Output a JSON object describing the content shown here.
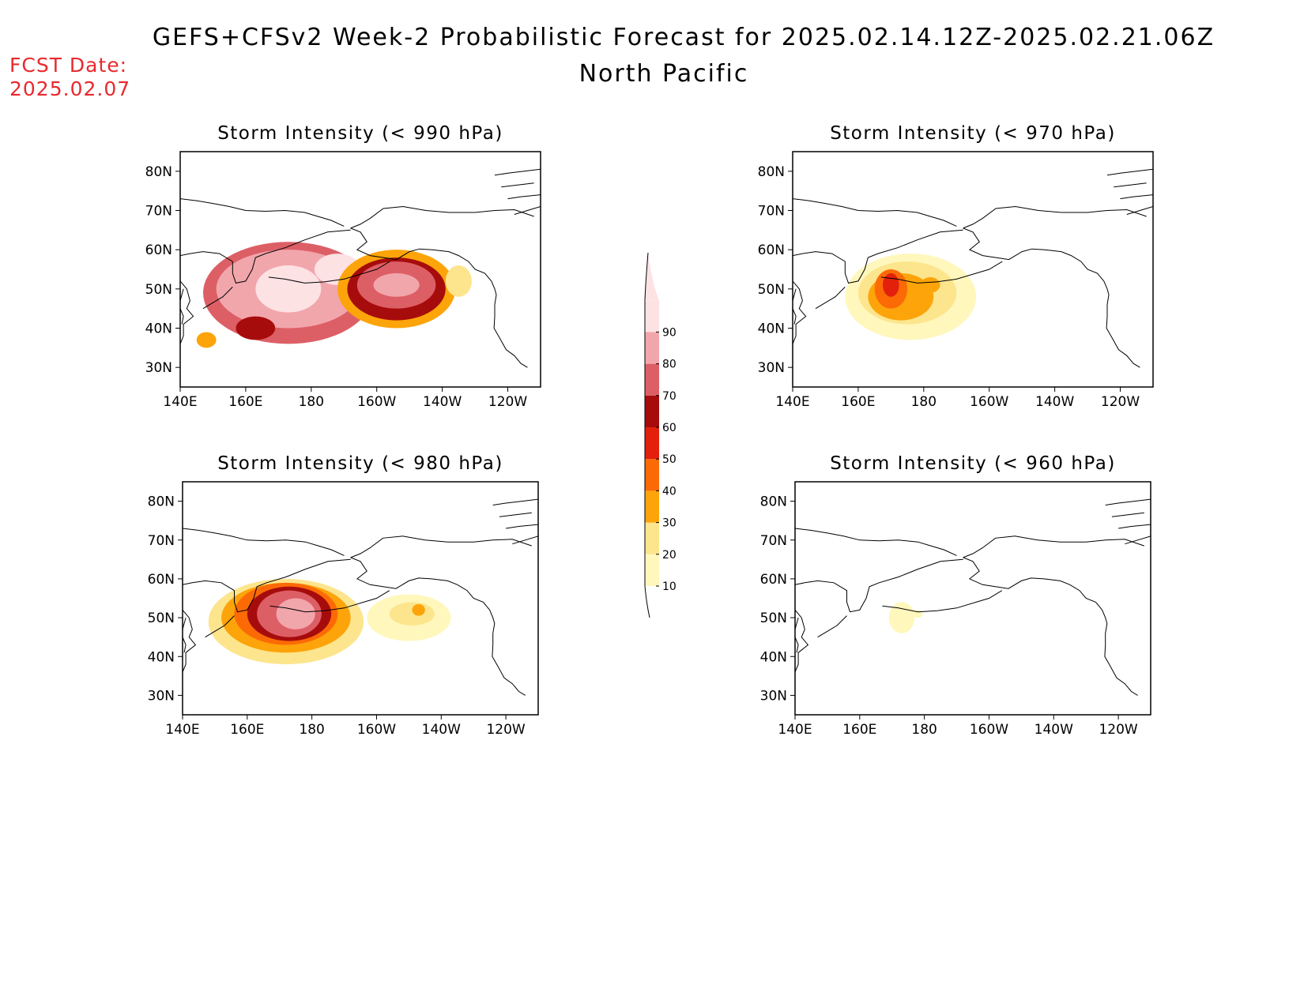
{
  "header": {
    "title": "GEFS+CFSv2 Week-2 Probabilistic Forecast for 2025.02.14.12Z-2025.02.21.06Z",
    "region": "North Pacific",
    "fcst_label": "FCST Date:",
    "fcst_date": "2025.02.07"
  },
  "axes": {
    "lon_ticks": [
      {
        "value": 140,
        "label": "140E"
      },
      {
        "value": 160,
        "label": "160E"
      },
      {
        "value": 180,
        "label": "180"
      },
      {
        "value": 200,
        "label": "160W"
      },
      {
        "value": 220,
        "label": "140W"
      },
      {
        "value": 240,
        "label": "120W"
      }
    ],
    "lat_ticks": [
      {
        "value": 30,
        "label": "30N"
      },
      {
        "value": 40,
        "label": "40N"
      },
      {
        "value": 50,
        "label": "50N"
      },
      {
        "value": 60,
        "label": "60N"
      },
      {
        "value": 70,
        "label": "70N"
      },
      {
        "value": 80,
        "label": "80N"
      }
    ],
    "lon_range": [
      140,
      250
    ],
    "lat_range": [
      25,
      85
    ]
  },
  "colorbar": {
    "levels": [
      10,
      20,
      30,
      40,
      50,
      60,
      70,
      80,
      90
    ],
    "colors": [
      "#fff7bc",
      "#fde58e",
      "#fca40a",
      "#fc6a06",
      "#e3200c",
      "#a70c0c",
      "#dd5f66",
      "#f1a6ac",
      "#fde2e4"
    ],
    "tick_labels": [
      "10",
      "20",
      "30",
      "40",
      "50",
      "60",
      "70",
      "80",
      "90"
    ]
  },
  "panels": [
    {
      "id": "p990",
      "title": "Storm Intensity (< 990 hPa)",
      "blobs": [
        {
          "lon": 173,
          "lat": 49,
          "rlon": 26,
          "rlat": 13,
          "value": 70
        },
        {
          "lon": 173,
          "lat": 50,
          "rlon": 22,
          "rlat": 10,
          "value": 80
        },
        {
          "lon": 173,
          "lat": 50,
          "rlon": 10,
          "rlat": 6,
          "value": 90
        },
        {
          "lon": 188,
          "lat": 55,
          "rlon": 7,
          "rlat": 4,
          "value": 90
        },
        {
          "lon": 163,
          "lat": 40,
          "rlon": 6,
          "rlat": 3,
          "value": 60
        },
        {
          "lon": 206,
          "lat": 50,
          "rlon": 18,
          "rlat": 10,
          "value": 30
        },
        {
          "lon": 206,
          "lat": 50,
          "rlon": 15,
          "rlat": 8,
          "value": 60
        },
        {
          "lon": 206,
          "lat": 51,
          "rlon": 12,
          "rlat": 6,
          "value": 70
        },
        {
          "lon": 206,
          "lat": 51,
          "rlon": 7,
          "rlat": 3,
          "value": 80
        },
        {
          "lon": 148,
          "lat": 37,
          "rlon": 3,
          "rlat": 2,
          "value": 30
        },
        {
          "lon": 225,
          "lat": 52,
          "rlon": 4,
          "rlat": 4,
          "value": 20
        }
      ]
    },
    {
      "id": "p970",
      "title": "Storm Intensity (< 970 hPa)",
      "blobs": [
        {
          "lon": 176,
          "lat": 48,
          "rlon": 20,
          "rlat": 11,
          "value": 10
        },
        {
          "lon": 175,
          "lat": 49,
          "rlon": 15,
          "rlat": 8,
          "value": 20
        },
        {
          "lon": 173,
          "lat": 48,
          "rlon": 10,
          "rlat": 6,
          "value": 30
        },
        {
          "lon": 170,
          "lat": 50,
          "rlon": 5,
          "rlat": 5,
          "value": 40
        },
        {
          "lon": 170,
          "lat": 51,
          "rlon": 2.5,
          "rlat": 3,
          "value": 50
        },
        {
          "lon": 182,
          "lat": 51,
          "rlon": 3,
          "rlat": 2,
          "value": 30
        }
      ]
    },
    {
      "id": "p980",
      "title": "Storm Intensity (< 980 hPa)",
      "blobs": [
        {
          "lon": 172,
          "lat": 49,
          "rlon": 24,
          "rlat": 11,
          "value": 20
        },
        {
          "lon": 172,
          "lat": 50,
          "rlon": 20,
          "rlat": 9,
          "value": 30
        },
        {
          "lon": 172,
          "lat": 51,
          "rlon": 16,
          "rlat": 8,
          "value": 40
        },
        {
          "lon": 173,
          "lat": 51,
          "rlon": 13,
          "rlat": 7,
          "value": 60
        },
        {
          "lon": 173,
          "lat": 51,
          "rlon": 10,
          "rlat": 6,
          "value": 70
        },
        {
          "lon": 175,
          "lat": 51,
          "rlon": 6,
          "rlat": 4,
          "value": 80
        },
        {
          "lon": 210,
          "lat": 50,
          "rlon": 13,
          "rlat": 6,
          "value": 10
        },
        {
          "lon": 211,
          "lat": 51,
          "rlon": 7,
          "rlat": 3,
          "value": 20
        },
        {
          "lon": 213,
          "lat": 52,
          "rlon": 2,
          "rlat": 1.5,
          "value": 30
        }
      ]
    },
    {
      "id": "p960",
      "title": "Storm Intensity (< 960 hPa)",
      "blobs": [
        {
          "lon": 173,
          "lat": 50,
          "rlon": 4,
          "rlat": 4,
          "value": 10
        },
        {
          "lon": 178,
          "lat": 51,
          "rlon": 1.5,
          "rlat": 1,
          "value": 10
        }
      ]
    }
  ]
}
